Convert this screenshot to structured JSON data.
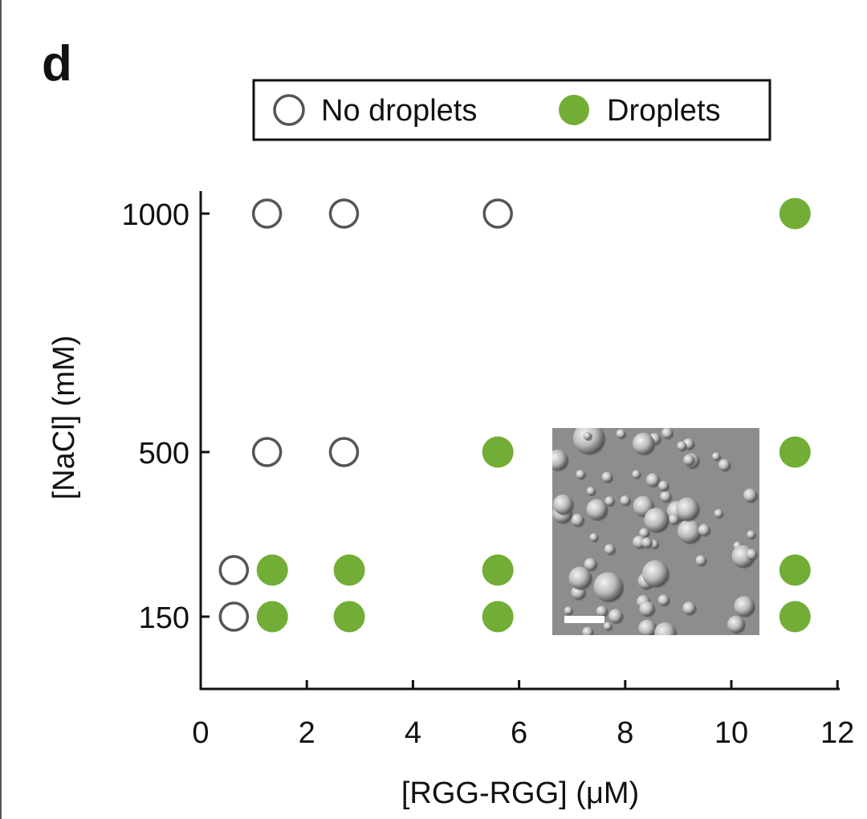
{
  "panel_label": "d",
  "colors": {
    "droplets": "#72ad35",
    "no_droplets": "#555555",
    "axis": "#111111"
  },
  "chart_data": {
    "type": "scatter",
    "xlabel": "[RGG-RGG] (μM)",
    "ylabel": "[NaCl] (mM)",
    "xlim": [
      0,
      12
    ],
    "x_ticks": [
      0,
      2,
      4,
      6,
      8,
      10,
      12
    ],
    "y_ticks": [
      150,
      500,
      1000
    ],
    "y_scale": "nonlinear (points at 150, 250, 500, 1000 mM)",
    "grid": false,
    "legend": {
      "placement": "top",
      "entries": [
        "No droplets",
        "Droplets"
      ]
    },
    "series": [
      {
        "name": "No droplets",
        "marker": "open-circle",
        "points": [
          {
            "x": 0.625,
            "y": 150
          },
          {
            "x": 0.625,
            "y": 250
          },
          {
            "x": 1.25,
            "y": 500
          },
          {
            "x": 2.7,
            "y": 500
          },
          {
            "x": 1.25,
            "y": 1000
          },
          {
            "x": 2.7,
            "y": 1000
          },
          {
            "x": 5.6,
            "y": 1000
          }
        ]
      },
      {
        "name": "Droplets",
        "marker": "filled-circle",
        "points": [
          {
            "x": 1.35,
            "y": 150
          },
          {
            "x": 2.8,
            "y": 150
          },
          {
            "x": 5.6,
            "y": 150
          },
          {
            "x": 11.2,
            "y": 150
          },
          {
            "x": 1.35,
            "y": 250
          },
          {
            "x": 2.8,
            "y": 250
          },
          {
            "x": 5.6,
            "y": 250
          },
          {
            "x": 11.2,
            "y": 250
          },
          {
            "x": 5.6,
            "y": 500
          },
          {
            "x": 11.2,
            "y": 500
          },
          {
            "x": 11.2,
            "y": 1000
          }
        ]
      }
    ],
    "inset": "DIC micrograph of droplets with scale bar"
  }
}
